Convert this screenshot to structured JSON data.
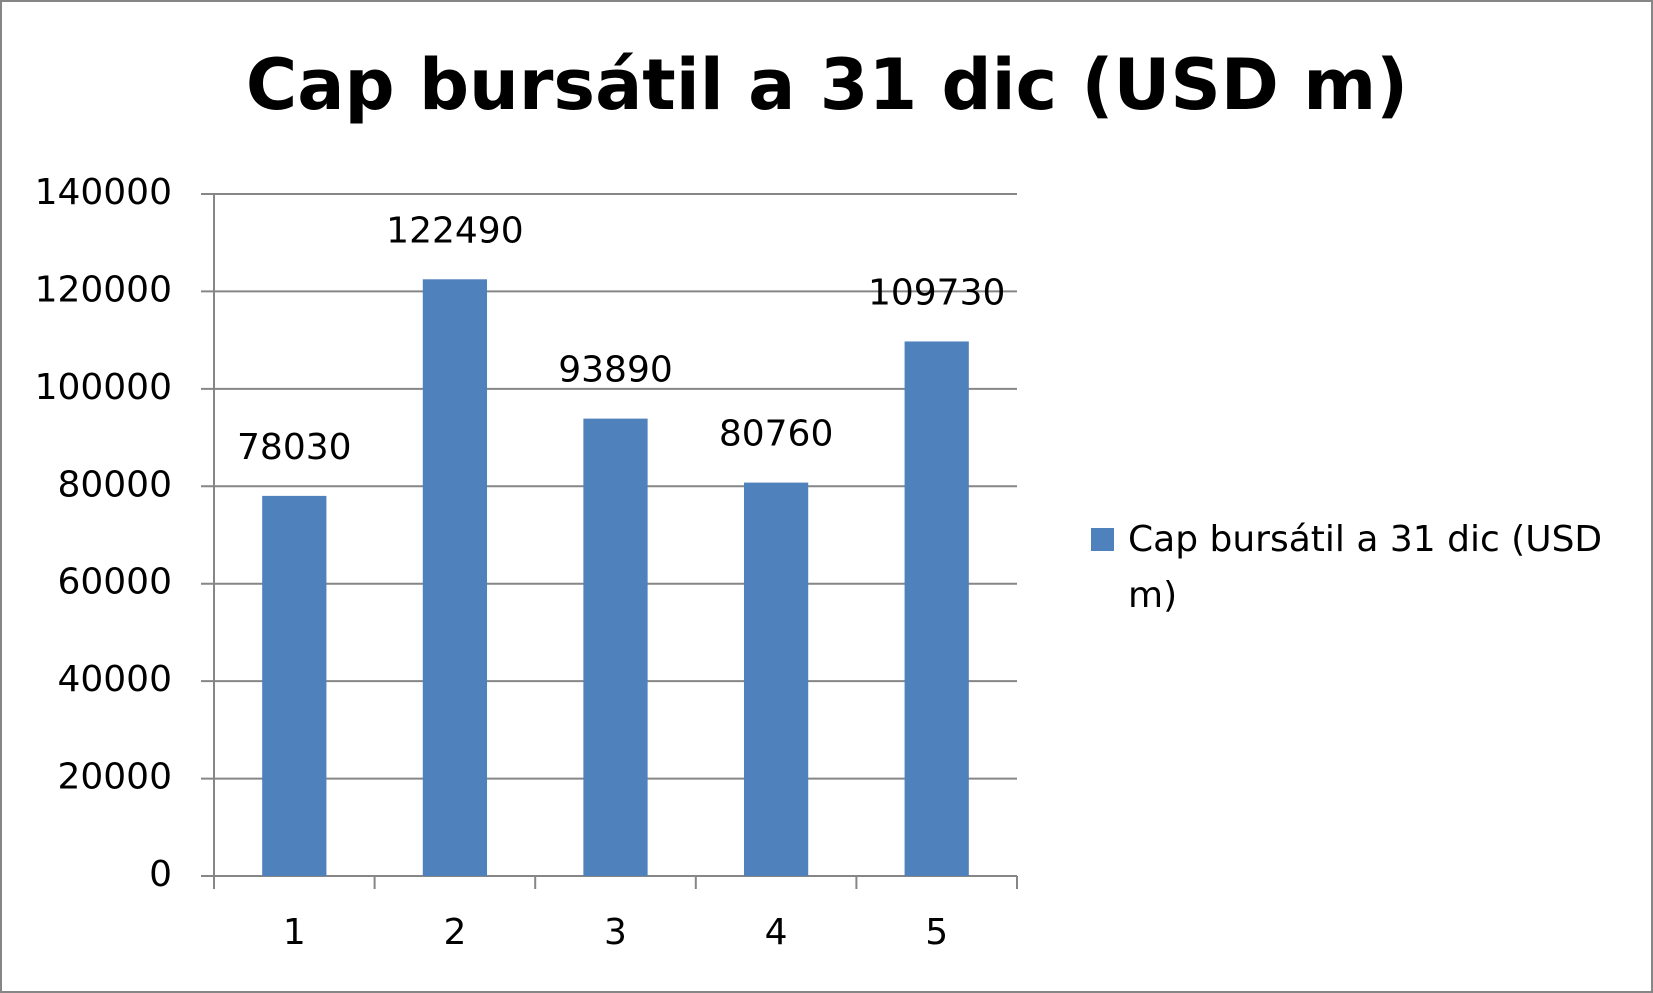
{
  "chart_data": {
    "type": "bar",
    "title": "Cap bursátil a 31 dic (USD m)",
    "categories": [
      "1",
      "2",
      "3",
      "4",
      "5"
    ],
    "series": [
      {
        "name": "Cap bursátil a 31 dic (USD m)",
        "color": "#4f81bd",
        "values": [
          78030,
          122490,
          93890,
          80760,
          109730
        ]
      }
    ],
    "ylim": [
      0,
      140000
    ],
    "yticks": [
      0,
      20000,
      40000,
      60000,
      80000,
      100000,
      120000,
      140000
    ],
    "grid": true,
    "data_labels": true,
    "legend": "right"
  }
}
